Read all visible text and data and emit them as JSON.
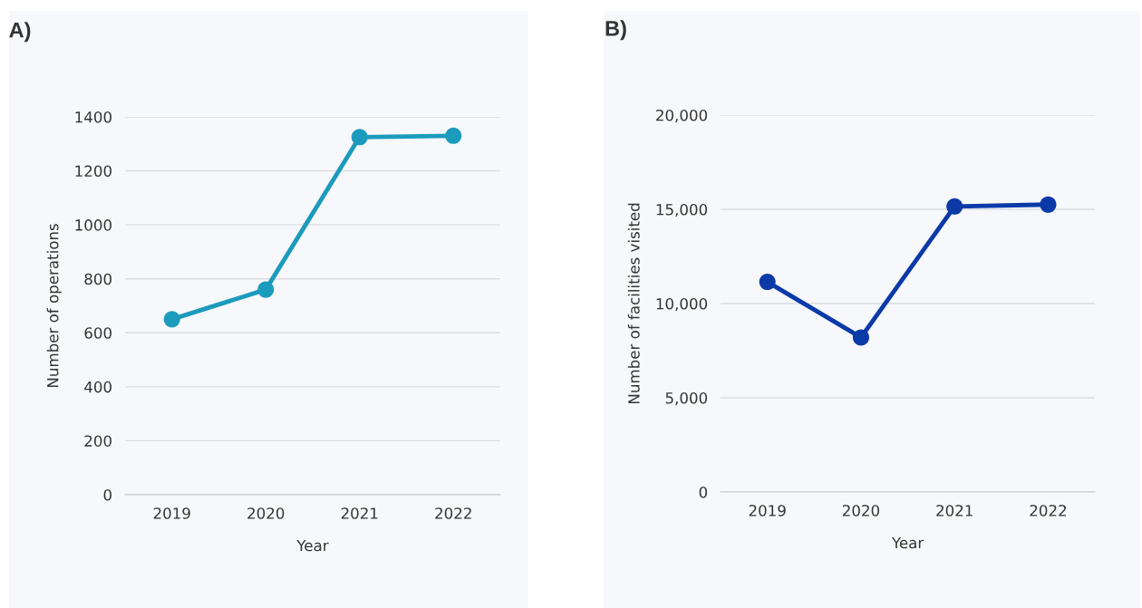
{
  "chart_data": [
    {
      "type": "line",
      "title": "A)",
      "xlabel": "Year",
      "ylabel": "Number of operations",
      "categories": [
        "2019",
        "2020",
        "2021",
        "2022"
      ],
      "series": [
        {
          "color": "#1c9bbd",
          "values": [
            650,
            760,
            1325,
            1330
          ]
        }
      ],
      "ylim": [
        0,
        1400
      ],
      "yticks": [
        0,
        200,
        400,
        600,
        800,
        1000,
        1200,
        1400
      ],
      "grid": "y",
      "marker": "circle",
      "line_style": "solid"
    },
    {
      "type": "line",
      "title": "B)",
      "xlabel": "Year",
      "ylabel": "Number of facilities visited",
      "categories": [
        "2019",
        "2020",
        "2021",
        "2022"
      ],
      "series": [
        {
          "color": "#0b3aa8",
          "values": [
            11150,
            8200,
            15150,
            15250
          ]
        }
      ],
      "ylim": [
        0,
        20000
      ],
      "yticks": [
        0,
        {
          "value": 5000,
          "label": "5,000"
        },
        {
          "value": 10000,
          "label": "10,000"
        },
        {
          "value": 15000,
          "label": "15,000"
        },
        {
          "value": 20000,
          "label": "20,000"
        }
      ],
      "grid": "y",
      "marker": "circle",
      "line_style": "solid"
    }
  ]
}
